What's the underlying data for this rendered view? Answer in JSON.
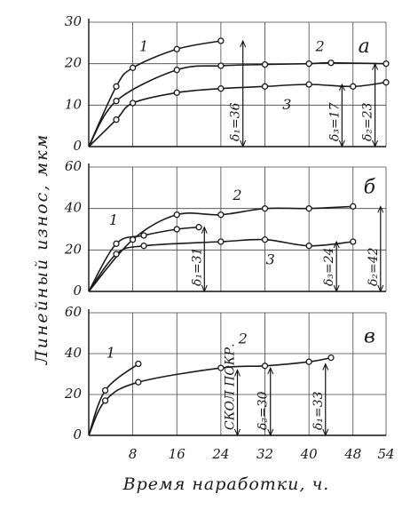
{
  "ylabel": "Линейный износ, мкм",
  "xlabel": "Время наработки, ч.",
  "chart_data": [
    {
      "type": "line",
      "panel": "а",
      "xlim": [
        0,
        54
      ],
      "ylim": [
        0,
        30
      ],
      "yticks": [
        0,
        10,
        20,
        30
      ],
      "xticks": [
        8,
        16,
        24,
        32,
        40,
        48,
        54
      ],
      "grid": true,
      "color": "#1a1a1a",
      "series": [
        {
          "name": "1",
          "x": [
            0,
            5,
            8,
            16,
            24
          ],
          "values": [
            0,
            14.5,
            19,
            23.5,
            25.5
          ]
        },
        {
          "name": "2",
          "x": [
            0,
            5,
            16,
            24,
            32,
            40,
            44,
            54
          ],
          "values": [
            0,
            11,
            18.5,
            19.5,
            19.8,
            20,
            20.2,
            20
          ]
        },
        {
          "name": "3",
          "x": [
            0,
            5,
            8,
            16,
            24,
            32,
            40,
            48,
            54
          ],
          "values": [
            0,
            6.5,
            10.5,
            13,
            14,
            14.5,
            15,
            14.5,
            15.5
          ]
        }
      ],
      "annotations": [
        "δ₁=36",
        "δ₃=17",
        "δ₂=23"
      ]
    },
    {
      "type": "line",
      "panel": "б",
      "xlim": [
        0,
        54
      ],
      "ylim": [
        0,
        60
      ],
      "yticks": [
        0,
        20,
        40,
        60
      ],
      "xticks": [
        8,
        16,
        24,
        32,
        40,
        48,
        54
      ],
      "grid": true,
      "color": "#1a1a1a",
      "series": [
        {
          "name": "1",
          "x": [
            0,
            5,
            10,
            16,
            20
          ],
          "values": [
            0,
            23,
            27,
            30,
            31
          ]
        },
        {
          "name": "2",
          "x": [
            0,
            8,
            16,
            24,
            32,
            40,
            48
          ],
          "values": [
            0,
            25,
            37,
            37,
            40,
            40,
            41
          ]
        },
        {
          "name": "3",
          "x": [
            0,
            5,
            10,
            24,
            32,
            40,
            48
          ],
          "values": [
            0,
            18,
            22,
            24,
            25,
            22,
            24
          ]
        }
      ],
      "annotations": [
        "δ₁=31",
        "δ₃=24",
        "δ₂=42"
      ]
    },
    {
      "type": "line",
      "panel": "в",
      "xlim": [
        0,
        54
      ],
      "ylim": [
        0,
        60
      ],
      "yticks": [
        0,
        20,
        40,
        60
      ],
      "xticks": [
        8,
        16,
        24,
        32,
        40,
        48,
        54
      ],
      "grid": true,
      "color": "#1a1a1a",
      "series": [
        {
          "name": "1",
          "x": [
            0,
            3,
            9
          ],
          "values": [
            0,
            22,
            35
          ]
        },
        {
          "name": "2",
          "x": [
            0,
            3,
            9,
            24,
            32,
            40,
            44
          ],
          "values": [
            0,
            17,
            26,
            33,
            34,
            36,
            38
          ]
        }
      ],
      "annotations": [
        "СКОЛ ПОКР.",
        "δ₂=30",
        "δ₁=33"
      ]
    }
  ]
}
